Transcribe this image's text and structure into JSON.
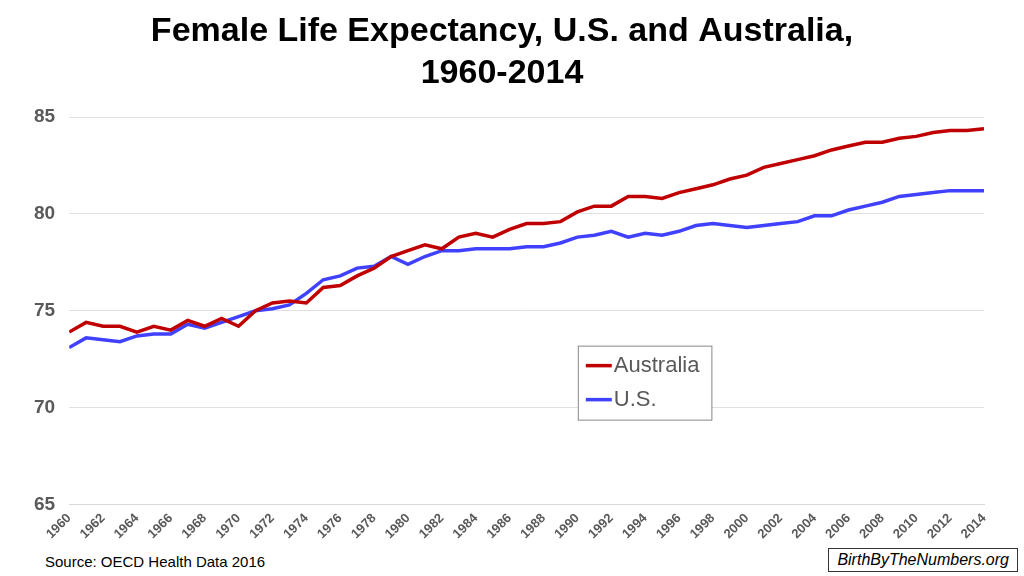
{
  "chart_data": {
    "type": "line",
    "title": [
      "Female Life Expectancy, U.S. and Australia,",
      "1960-2014"
    ],
    "source": "Source: OECD Health Data 2016",
    "credit": "BirthByTheNumbers.org",
    "x": [
      1960,
      1961,
      1962,
      1963,
      1964,
      1965,
      1966,
      1967,
      1968,
      1969,
      1970,
      1971,
      1972,
      1973,
      1974,
      1975,
      1976,
      1977,
      1978,
      1979,
      1980,
      1981,
      1982,
      1983,
      1984,
      1985,
      1986,
      1987,
      1988,
      1989,
      1990,
      1991,
      1992,
      1993,
      1994,
      1995,
      1996,
      1997,
      1998,
      1999,
      2000,
      2001,
      2002,
      2003,
      2004,
      2005,
      2006,
      2007,
      2008,
      2009,
      2010,
      2011,
      2012,
      2013,
      2014
    ],
    "series": [
      {
        "name": "Australia",
        "color": "#c00000",
        "values": [
          73.9,
          74.4,
          74.2,
          74.2,
          73.9,
          74.2,
          74.0,
          74.5,
          74.2,
          74.6,
          74.2,
          75.0,
          75.4,
          75.5,
          75.4,
          76.2,
          76.3,
          76.8,
          77.2,
          77.8,
          78.1,
          78.4,
          78.2,
          78.8,
          79.0,
          78.8,
          79.2,
          79.5,
          79.5,
          79.6,
          80.1,
          80.4,
          80.4,
          80.9,
          80.9,
          80.8,
          81.1,
          81.3,
          81.5,
          81.8,
          82.0,
          82.4,
          82.6,
          82.8,
          83.0,
          83.3,
          83.5,
          83.7,
          83.7,
          83.9,
          84.0,
          84.2,
          84.3,
          84.3,
          84.4
        ]
      },
      {
        "name": "U.S.",
        "color": "#4040ff",
        "values": [
          73.1,
          73.6,
          73.5,
          73.4,
          73.7,
          73.8,
          73.8,
          74.3,
          74.1,
          74.4,
          74.7,
          75.0,
          75.1,
          75.3,
          75.9,
          76.6,
          76.8,
          77.2,
          77.3,
          77.8,
          77.4,
          77.8,
          78.1,
          78.1,
          78.2,
          78.2,
          78.2,
          78.3,
          78.3,
          78.5,
          78.8,
          78.9,
          79.1,
          78.8,
          79.0,
          78.9,
          79.1,
          79.4,
          79.5,
          79.4,
          79.3,
          79.4,
          79.5,
          79.6,
          79.9,
          79.9,
          80.2,
          80.4,
          80.6,
          80.9,
          81.0,
          81.1,
          81.2,
          81.2,
          81.2
        ]
      }
    ],
    "xlim": [
      1960,
      2014
    ],
    "xticks": [
      1960,
      1962,
      1964,
      1966,
      1968,
      1970,
      1972,
      1974,
      1976,
      1978,
      1980,
      1982,
      1984,
      1986,
      1988,
      1990,
      1992,
      1994,
      1996,
      1998,
      2000,
      2002,
      2004,
      2006,
      2008,
      2010,
      2012,
      2014
    ],
    "ylim": [
      65,
      85
    ],
    "yticks": [
      65,
      70,
      75,
      80,
      85
    ],
    "grid": true,
    "legend": "lower right"
  }
}
